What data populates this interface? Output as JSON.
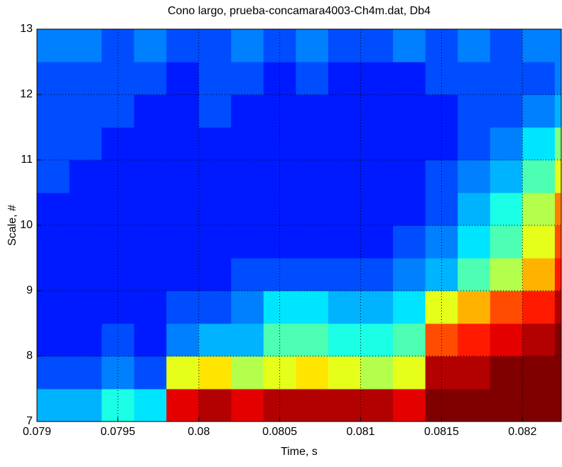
{
  "chart_data": {
    "type": "heatmap",
    "title": "Cono largo, prueba-concamara4003-Ch4m.dat, Db4",
    "xlabel": "Time, s",
    "ylabel": "Scale, #",
    "x_edges": [
      0.079,
      0.0792,
      0.0794,
      0.0796,
      0.0798,
      0.08,
      0.0802,
      0.0804,
      0.0806,
      0.0808,
      0.081,
      0.0812,
      0.0814,
      0.0816,
      0.0818,
      0.082,
      0.0822,
      0.08224
    ],
    "y_edges": [
      7,
      7.5,
      8,
      8.5,
      9,
      9.5,
      10,
      10.5,
      11,
      11.5,
      12,
      12.5,
      13
    ],
    "z": [
      [
        0.3,
        0.3,
        0.4,
        0.35,
        0.9,
        0.95,
        0.9,
        0.95,
        0.95,
        0.95,
        0.95,
        0.9,
        1,
        1,
        1,
        1,
        1
      ],
      [
        0.2,
        0.2,
        0.25,
        0.2,
        0.6,
        0.65,
        0.55,
        0.6,
        0.65,
        0.6,
        0.55,
        0.6,
        0.95,
        0.95,
        1,
        1,
        1
      ],
      [
        0.15,
        0.15,
        0.2,
        0.15,
        0.25,
        0.3,
        0.3,
        0.45,
        0.45,
        0.4,
        0.4,
        0.45,
        0.8,
        0.85,
        0.9,
        0.95,
        1
      ],
      [
        0.15,
        0.15,
        0.15,
        0.15,
        0.2,
        0.2,
        0.25,
        0.35,
        0.35,
        0.3,
        0.3,
        0.35,
        0.6,
        0.7,
        0.8,
        0.85,
        0.95
      ],
      [
        0.15,
        0.15,
        0.15,
        0.15,
        0.15,
        0.15,
        0.2,
        0.2,
        0.2,
        0.2,
        0.2,
        0.25,
        0.3,
        0.45,
        0.55,
        0.7,
        0.85
      ],
      [
        0.15,
        0.15,
        0.15,
        0.15,
        0.15,
        0.15,
        0.15,
        0.15,
        0.15,
        0.15,
        0.15,
        0.2,
        0.25,
        0.35,
        0.45,
        0.6,
        0.8
      ],
      [
        0.15,
        0.15,
        0.15,
        0.15,
        0.15,
        0.15,
        0.15,
        0.15,
        0.15,
        0.15,
        0.15,
        0.15,
        0.2,
        0.3,
        0.4,
        0.55,
        0.75
      ],
      [
        0.2,
        0.15,
        0.15,
        0.15,
        0.15,
        0.15,
        0.15,
        0.15,
        0.15,
        0.15,
        0.15,
        0.15,
        0.2,
        0.25,
        0.3,
        0.45,
        0.6
      ],
      [
        0.2,
        0.2,
        0.15,
        0.15,
        0.15,
        0.15,
        0.15,
        0.15,
        0.15,
        0.15,
        0.15,
        0.15,
        0.15,
        0.2,
        0.25,
        0.35,
        0.5
      ],
      [
        0.2,
        0.2,
        0.2,
        0.15,
        0.15,
        0.2,
        0.15,
        0.15,
        0.15,
        0.15,
        0.15,
        0.15,
        0.15,
        0.2,
        0.2,
        0.25,
        0.3
      ],
      [
        0.2,
        0.2,
        0.2,
        0.2,
        0.15,
        0.2,
        0.2,
        0.15,
        0.2,
        0.15,
        0.15,
        0.15,
        0.2,
        0.2,
        0.2,
        0.2,
        0.25
      ],
      [
        0.25,
        0.25,
        0.2,
        0.25,
        0.2,
        0.2,
        0.25,
        0.2,
        0.25,
        0.2,
        0.2,
        0.25,
        0.2,
        0.25,
        0.2,
        0.25,
        0.25
      ]
    ],
    "colormap": "jet",
    "clim": [
      0,
      1
    ],
    "xlim": [
      0.079,
      0.08224
    ],
    "ylim": [
      7,
      13
    ],
    "xticks": [
      0.079,
      0.0795,
      0.08,
      0.0805,
      0.081,
      0.0815,
      0.082
    ],
    "yticks": [
      7,
      8,
      9,
      10,
      11,
      12,
      13
    ],
    "grid": true
  }
}
